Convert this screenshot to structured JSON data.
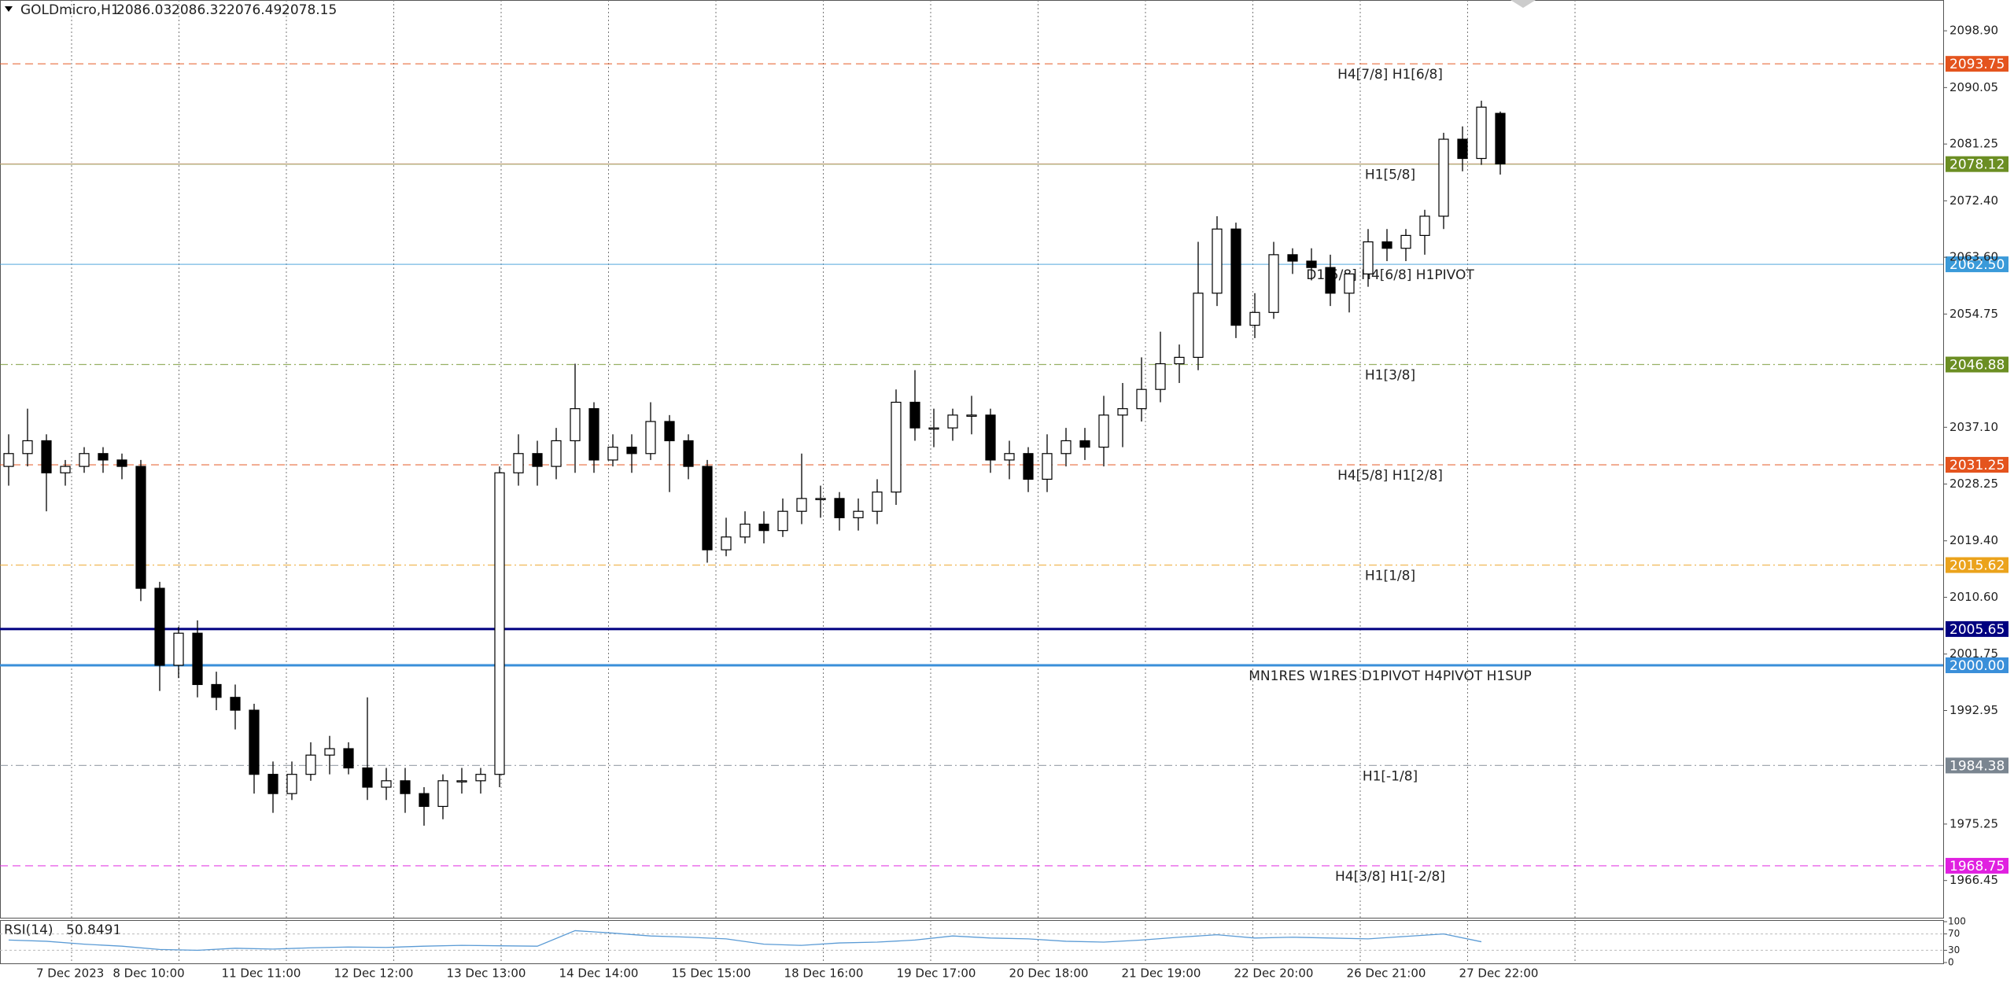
{
  "chart_data": {
    "type": "candlestick",
    "title": "GOLDmicro,H1",
    "ylim": [
      1960.65,
      2103.7
    ],
    "yticks": [
      {
        "value": 2098.9,
        "label": "2098.90"
      },
      2090.05,
      2081.25,
      {
        "value": 2072.4,
        "label": "2072.40"
      },
      {
        "value": 2063.6,
        "label": "2063.60"
      },
      2054.75,
      {
        "value": 2037.1,
        "label": "2037.10"
      },
      2028.25,
      {
        "value": 2019.4,
        "label": "2019.40"
      },
      {
        "value": 2010.6,
        "label": "2010.60"
      },
      2001.75,
      1992.95,
      1975.25,
      1966.45
    ],
    "x_labels": [
      "7 Dec 2023",
      "8 Dec 10:00",
      "11 Dec 11:00",
      "12 Dec 12:00",
      "13 Dec 13:00",
      "14 Dec 14:00",
      "15 Dec 15:00",
      "18 Dec 16:00",
      "19 Dec 17:00",
      "20 Dec 18:00",
      "21 Dec 19:00",
      "22 Dec 20:00",
      "26 Dec 21:00",
      "27 Dec 22:00"
    ],
    "open": [
      2031,
      2033,
      2035,
      2030,
      2031,
      2033,
      2032,
      2031,
      2012,
      2000,
      2005,
      1997,
      1995,
      1993,
      1983,
      1980,
      1983,
      1986,
      1987,
      1984,
      1981,
      1982,
      1980,
      1978,
      1982,
      1982,
      1983,
      2030,
      2033,
      2031,
      2035,
      2040,
      2032,
      2034,
      2033,
      2038,
      2035,
      2031,
      2018,
      2020,
      2022,
      2021,
      2024,
      2026,
      2026,
      2023,
      2024,
      2027,
      2041,
      2037,
      2037,
      2039,
      2039,
      2032,
      2033,
      2029,
      2033,
      2035,
      2034,
      2039,
      2040,
      2043,
      2047,
      2048,
      2058,
      2068,
      2053,
      2055,
      2064,
      2063,
      2062,
      2058,
      2061,
      2066,
      2065,
      2067,
      2070,
      2082,
      2079,
      2086.03
    ],
    "high": [
      2036,
      2040,
      2036,
      2032,
      2034,
      2034,
      2033,
      2032,
      2013,
      2006,
      2007,
      1999,
      1997,
      1994,
      1985,
      1985,
      1988,
      1989,
      1988,
      1995,
      1984,
      1984,
      1981,
      1983,
      1984,
      1984,
      2031,
      2036,
      2035,
      2037,
      2047,
      2041,
      2036,
      2036,
      2041,
      2039,
      2036,
      2032,
      2023,
      2024,
      2024,
      2026,
      2033,
      2028,
      2027,
      2026,
      2029,
      2043,
      2046,
      2040,
      2040,
      2042,
      2040,
      2035,
      2034,
      2036,
      2037,
      2037,
      2042,
      2044,
      2048,
      2052,
      2050,
      2066,
      2070,
      2069,
      2058,
      2066,
      2065,
      2065,
      2064,
      2061,
      2068,
      2068,
      2068,
      2071,
      2083,
      2084,
      2088,
      2086.32
    ],
    "low": [
      2028,
      2031,
      2024,
      2028,
      2030,
      2030,
      2029,
      2010,
      1996,
      1998,
      1995,
      1993,
      1990,
      1980,
      1977,
      1979,
      1982,
      1983,
      1983,
      1979,
      1979,
      1977,
      1975,
      1976,
      1980,
      1980,
      1981,
      2028,
      2028,
      2029,
      2030,
      2030,
      2031,
      2030,
      2032,
      2027,
      2029,
      2016,
      2017,
      2019,
      2019,
      2020,
      2022,
      2023,
      2021,
      2021,
      2022,
      2025,
      2035,
      2034,
      2035,
      2036,
      2030,
      2029,
      2027,
      2027,
      2031,
      2032,
      2031,
      2034,
      2038,
      2041,
      2044,
      2046,
      2056,
      2051,
      2051,
      2054,
      2061,
      2060,
      2056,
      2055,
      2059,
      2063,
      2063,
      2064,
      2068,
      2077,
      2078,
      2076.49
    ],
    "close": [
      2033,
      2035,
      2030,
      2031,
      2033,
      2032,
      2031,
      2012,
      2000,
      2005,
      1997,
      1995,
      1993,
      1983,
      1980,
      1983,
      1986,
      1987,
      1984,
      1981,
      1982,
      1980,
      1978,
      1982,
      1982,
      1983,
      2030,
      2033,
      2031,
      2035,
      2040,
      2032,
      2034,
      2033,
      2038,
      2035,
      2031,
      2018,
      2020,
      2022,
      2021,
      2024,
      2026,
      2026,
      2023,
      2024,
      2027,
      2041,
      2037,
      2037,
      2039,
      2039,
      2032,
      2033,
      2029,
      2033,
      2035,
      2034,
      2039,
      2040,
      2043,
      2047,
      2048,
      2058,
      2068,
      2053,
      2055,
      2064,
      2063,
      2062,
      2058,
      2061,
      2066,
      2065,
      2067,
      2070,
      2082,
      2079,
      2087,
      2078.15
    ],
    "levels": [
      {
        "name": "H4[7/8] H1[6/8]",
        "value": 2093.75,
        "color": "#e4541e",
        "style": "dashed"
      },
      {
        "name": "H1[5/8]",
        "value": 2078.12,
        "color": "#6b8e23",
        "style": "solid"
      },
      {
        "name": "D1[5/8] H4[6/8] H1PIVOT",
        "value": 2062.5,
        "value_label": "2062.50",
        "color": "#3a9ad9",
        "style": "solid"
      },
      {
        "name": "H1[3/8]",
        "value": 2046.88,
        "color": "#6b8e23",
        "style": "dashdot"
      },
      {
        "name": "H4[5/8] H1[2/8]",
        "value": 2031.25,
        "color": "#e4541e",
        "style": "dashed"
      },
      {
        "name": "H1[1/8]",
        "value": 2015.62,
        "color": "#eba31c",
        "style": "dashdot"
      },
      {
        "value": 2005.65,
        "color": "#000080",
        "style": "thick"
      },
      {
        "name": "MN1RES W1RES D1PIVOT H4PIVOT H1SUP",
        "value": 2000,
        "value_label": "2000.00",
        "color": "#3a8fd9",
        "style": "thick"
      },
      {
        "name": "H1[-1/8]",
        "value": 1984.38,
        "color": "#7a8590",
        "style": "dashdot"
      },
      {
        "name": "H4[3/8] H1[-2/8]",
        "value": 1968.75,
        "color": "#e020e0",
        "style": "dashed"
      }
    ],
    "rsi": {
      "name": "RSI(14)",
      "color": "#5b9bd5",
      "ylim": [
        0,
        100
      ],
      "yticks": [
        100,
        70,
        30,
        0
      ],
      "values": [
        55,
        52,
        45,
        40,
        32,
        30,
        35,
        33,
        36,
        38,
        37,
        40,
        42,
        41,
        40,
        78,
        72,
        65,
        62,
        58,
        45,
        42,
        48,
        50,
        55,
        65,
        60,
        58,
        52,
        50,
        55,
        62,
        68,
        60,
        62,
        60,
        58,
        64,
        70,
        50.8491
      ]
    }
  }
}
